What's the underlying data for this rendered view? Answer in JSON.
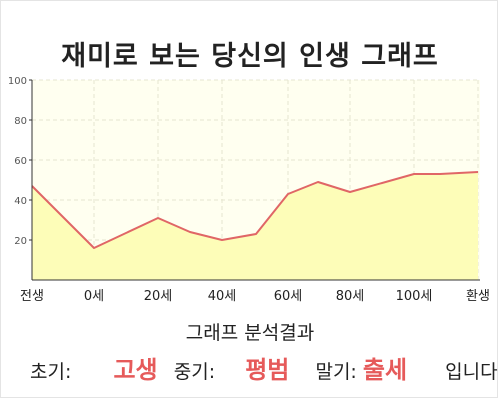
{
  "header": {
    "title": "재미로 보는 당신의 인생 그래프"
  },
  "chart_data": {
    "type": "area",
    "x_ticks": [
      "전생",
      "0세",
      "20세",
      "40세",
      "60세",
      "80세",
      "100세",
      "환생"
    ],
    "y_ticks": [
      "100",
      "80",
      "60",
      "40",
      "20"
    ],
    "ylim": [
      0,
      100
    ],
    "grid": true,
    "series": [
      {
        "values": [
          {
            "x": "전생",
            "y": 47
          },
          {
            "x": "0세",
            "y": 16
          },
          {
            "x": "20세",
            "y": 31
          },
          {
            "x": "30세",
            "y": 24
          },
          {
            "x": "40세",
            "y": 20
          },
          {
            "x": "50세",
            "y": 23
          },
          {
            "x": "60세",
            "y": 43
          },
          {
            "x": "70세",
            "y": 49
          },
          {
            "x": "80세",
            "y": 44
          },
          {
            "x": "100세",
            "y": 53
          },
          {
            "x": "110세",
            "y": 53
          },
          {
            "x": "환생",
            "y": 54
          }
        ]
      }
    ],
    "colors": {
      "line": "#e06666",
      "fill": "#fdfdb8",
      "plot_bg": "#fffff0",
      "grid": "#e6e6d0"
    }
  },
  "analysis": {
    "title": "그래프 분석결과",
    "early_label": "초기:",
    "early_value": "고생",
    "middle_label": "중기:",
    "middle_value": "평범",
    "late_label": "말기:",
    "late_value": "출세",
    "suffix": "입니다"
  }
}
